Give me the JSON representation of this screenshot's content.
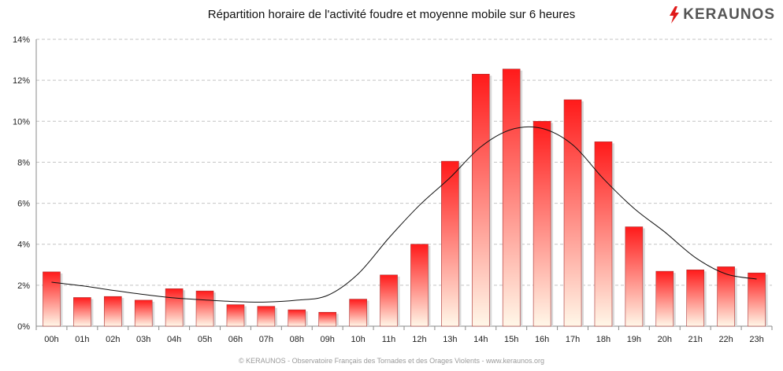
{
  "chart_data": {
    "type": "bar",
    "title": "Répartition horaire de l'activité foudre et moyenne mobile sur 6 heures",
    "categories": [
      "00h",
      "01h",
      "02h",
      "03h",
      "04h",
      "05h",
      "06h",
      "07h",
      "08h",
      "09h",
      "10h",
      "11h",
      "12h",
      "13h",
      "14h",
      "15h",
      "16h",
      "17h",
      "18h",
      "19h",
      "20h",
      "21h",
      "22h",
      "23h"
    ],
    "yticks": [
      "0%",
      "2%",
      "4%",
      "6%",
      "8%",
      "10%",
      "12%",
      "14%"
    ],
    "ylim": [
      0,
      14
    ],
    "grid": true,
    "series": [
      {
        "type": "bar",
        "values": [
          2.65,
          1.4,
          1.45,
          1.27,
          1.83,
          1.72,
          1.05,
          0.97,
          0.8,
          0.68,
          1.32,
          2.5,
          4.0,
          8.05,
          12.3,
          12.55,
          10.0,
          11.05,
          9.0,
          4.85,
          2.68,
          2.75,
          2.9,
          2.6
        ],
        "color_top": "#ff1a1a",
        "color_bottom": "#fff7e8"
      },
      {
        "type": "line",
        "values": [
          2.15,
          1.97,
          1.75,
          1.55,
          1.38,
          1.28,
          1.2,
          1.18,
          1.27,
          1.5,
          2.55,
          4.3,
          5.9,
          7.25,
          8.75,
          9.6,
          9.65,
          8.85,
          7.2,
          5.75,
          4.6,
          3.35,
          2.55,
          2.3
        ],
        "color": "#111111"
      }
    ]
  },
  "logo": {
    "text": "KERAUNOS",
    "icon": "lightning-bolt-icon",
    "color": "#e01a1a"
  },
  "footer": {
    "text": "© KERAUNOS - Observatoire Français des Tornades et des Orages Violents - www.keraunos.org"
  }
}
